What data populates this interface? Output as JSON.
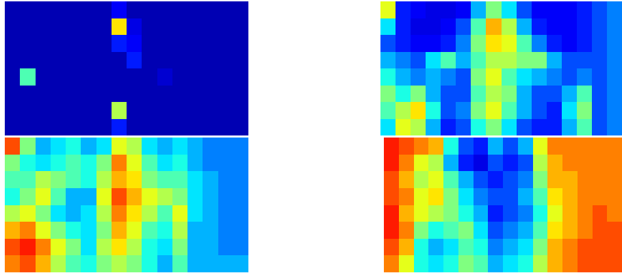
{
  "chart_data": [
    {
      "type": "heatmap",
      "zlim": [
        0,
        1
      ],
      "tick_labels": false,
      "values": [
        [
          0.05,
          0.05,
          0.05,
          0.05,
          0.05,
          0.05,
          0.05,
          0.12,
          0.05,
          0.05,
          0.05,
          0.05,
          0.05,
          0.05,
          0.05,
          0.05
        ],
        [
          0.05,
          0.05,
          0.05,
          0.05,
          0.05,
          0.05,
          0.05,
          0.65,
          0.1,
          0.05,
          0.05,
          0.05,
          0.05,
          0.05,
          0.05,
          0.05
        ],
        [
          0.05,
          0.05,
          0.05,
          0.05,
          0.05,
          0.05,
          0.05,
          0.15,
          0.12,
          0.05,
          0.05,
          0.05,
          0.05,
          0.05,
          0.05,
          0.05
        ],
        [
          0.05,
          0.05,
          0.05,
          0.05,
          0.05,
          0.05,
          0.05,
          0.05,
          0.15,
          0.05,
          0.05,
          0.05,
          0.05,
          0.05,
          0.05,
          0.05
        ],
        [
          0.05,
          0.45,
          0.05,
          0.05,
          0.05,
          0.05,
          0.05,
          0.05,
          0.05,
          0.05,
          0.08,
          0.05,
          0.05,
          0.05,
          0.05,
          0.05
        ],
        [
          0.05,
          0.05,
          0.05,
          0.05,
          0.05,
          0.05,
          0.05,
          0.05,
          0.05,
          0.05,
          0.05,
          0.05,
          0.05,
          0.05,
          0.05,
          0.05
        ],
        [
          0.05,
          0.05,
          0.05,
          0.05,
          0.05,
          0.05,
          0.05,
          0.55,
          0.05,
          0.05,
          0.05,
          0.05,
          0.05,
          0.05,
          0.05,
          0.05
        ],
        [
          0.05,
          0.05,
          0.05,
          0.05,
          0.05,
          0.05,
          0.05,
          0.15,
          0.05,
          0.05,
          0.05,
          0.05,
          0.05,
          0.05,
          0.05,
          0.05
        ]
      ]
    },
    {
      "type": "heatmap",
      "zlim": [
        0,
        1
      ],
      "tick_labels": false,
      "values": [
        [
          0.6,
          0.15,
          0.12,
          0.1,
          0.1,
          0.12,
          0.3,
          0.5,
          0.35,
          0.2,
          0.12,
          0.12,
          0.12,
          0.15,
          0.2,
          0.25
        ],
        [
          0.35,
          0.15,
          0.1,
          0.1,
          0.12,
          0.2,
          0.45,
          0.7,
          0.55,
          0.3,
          0.15,
          0.12,
          0.12,
          0.15,
          0.2,
          0.25
        ],
        [
          0.2,
          0.15,
          0.12,
          0.12,
          0.15,
          0.25,
          0.5,
          0.65,
          0.6,
          0.45,
          0.25,
          0.15,
          0.12,
          0.15,
          0.2,
          0.25
        ],
        [
          0.3,
          0.25,
          0.2,
          0.35,
          0.45,
          0.3,
          0.45,
          0.55,
          0.55,
          0.5,
          0.5,
          0.3,
          0.2,
          0.2,
          0.2,
          0.25
        ],
        [
          0.4,
          0.3,
          0.25,
          0.3,
          0.25,
          0.2,
          0.5,
          0.6,
          0.45,
          0.35,
          0.3,
          0.25,
          0.2,
          0.25,
          0.2,
          0.25
        ],
        [
          0.5,
          0.4,
          0.5,
          0.3,
          0.2,
          0.2,
          0.45,
          0.55,
          0.5,
          0.3,
          0.2,
          0.2,
          0.3,
          0.45,
          0.2,
          0.25
        ],
        [
          0.45,
          0.55,
          0.65,
          0.4,
          0.2,
          0.25,
          0.5,
          0.6,
          0.45,
          0.3,
          0.2,
          0.15,
          0.35,
          0.5,
          0.2,
          0.25
        ],
        [
          0.35,
          0.6,
          0.55,
          0.3,
          0.15,
          0.2,
          0.4,
          0.5,
          0.35,
          0.2,
          0.15,
          0.15,
          0.3,
          0.45,
          0.2,
          0.25
        ]
      ]
    },
    {
      "type": "heatmap",
      "zlim": [
        0,
        1
      ],
      "tick_labels": false,
      "values": [
        [
          0.8,
          0.5,
          0.3,
          0.35,
          0.4,
          0.3,
          0.35,
          0.6,
          0.55,
          0.35,
          0.3,
          0.35,
          0.3,
          0.25,
          0.25,
          0.25
        ],
        [
          0.5,
          0.4,
          0.35,
          0.4,
          0.45,
          0.4,
          0.5,
          0.75,
          0.6,
          0.45,
          0.35,
          0.4,
          0.3,
          0.25,
          0.25,
          0.25
        ],
        [
          0.45,
          0.45,
          0.55,
          0.5,
          0.45,
          0.4,
          0.55,
          0.7,
          0.65,
          0.5,
          0.45,
          0.45,
          0.35,
          0.3,
          0.25,
          0.25
        ],
        [
          0.4,
          0.5,
          0.6,
          0.45,
          0.3,
          0.3,
          0.6,
          0.8,
          0.7,
          0.6,
          0.55,
          0.5,
          0.35,
          0.3,
          0.25,
          0.25
        ],
        [
          0.55,
          0.6,
          0.5,
          0.35,
          0.3,
          0.35,
          0.55,
          0.75,
          0.65,
          0.55,
          0.45,
          0.6,
          0.35,
          0.3,
          0.25,
          0.25
        ],
        [
          0.7,
          0.75,
          0.6,
          0.5,
          0.4,
          0.35,
          0.5,
          0.7,
          0.6,
          0.45,
          0.4,
          0.55,
          0.3,
          0.3,
          0.25,
          0.25
        ],
        [
          0.8,
          0.85,
          0.75,
          0.6,
          0.5,
          0.35,
          0.55,
          0.65,
          0.55,
          0.4,
          0.35,
          0.5,
          0.3,
          0.3,
          0.25,
          0.25
        ],
        [
          0.75,
          0.8,
          0.7,
          0.55,
          0.45,
          0.4,
          0.5,
          0.55,
          0.5,
          0.4,
          0.3,
          0.45,
          0.3,
          0.3,
          0.3,
          0.3
        ]
      ]
    },
    {
      "type": "heatmap",
      "zlim": [
        0,
        1
      ],
      "tick_labels": false,
      "values": [
        [
          0.85,
          0.8,
          0.75,
          0.7,
          0.4,
          0.2,
          0.15,
          0.3,
          0.2,
          0.3,
          0.6,
          0.75,
          0.75,
          0.75,
          0.75,
          0.75
        ],
        [
          0.85,
          0.75,
          0.6,
          0.55,
          0.3,
          0.15,
          0.1,
          0.2,
          0.15,
          0.2,
          0.55,
          0.7,
          0.75,
          0.75,
          0.75,
          0.75
        ],
        [
          0.8,
          0.7,
          0.55,
          0.6,
          0.45,
          0.3,
          0.2,
          0.15,
          0.2,
          0.25,
          0.5,
          0.7,
          0.7,
          0.75,
          0.75,
          0.75
        ],
        [
          0.8,
          0.75,
          0.6,
          0.65,
          0.5,
          0.35,
          0.25,
          0.2,
          0.2,
          0.3,
          0.45,
          0.65,
          0.7,
          0.75,
          0.75,
          0.75
        ],
        [
          0.85,
          0.7,
          0.6,
          0.55,
          0.5,
          0.4,
          0.3,
          0.15,
          0.2,
          0.25,
          0.4,
          0.6,
          0.7,
          0.75,
          0.8,
          0.75
        ],
        [
          0.85,
          0.75,
          0.5,
          0.4,
          0.45,
          0.5,
          0.35,
          0.2,
          0.25,
          0.3,
          0.45,
          0.65,
          0.7,
          0.75,
          0.8,
          0.8
        ],
        [
          0.8,
          0.7,
          0.4,
          0.3,
          0.35,
          0.45,
          0.4,
          0.25,
          0.3,
          0.35,
          0.5,
          0.7,
          0.75,
          0.8,
          0.8,
          0.8
        ],
        [
          0.75,
          0.6,
          0.4,
          0.35,
          0.4,
          0.5,
          0.45,
          0.3,
          0.35,
          0.4,
          0.55,
          0.7,
          0.75,
          0.8,
          0.8,
          0.8
        ]
      ]
    }
  ]
}
